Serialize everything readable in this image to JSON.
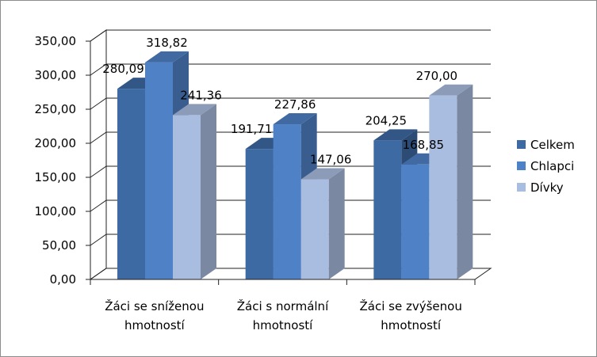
{
  "chart_data": {
    "type": "bar",
    "categories": [
      [
        "Žáci se sníženou",
        "hmotností"
      ],
      [
        "Žáci s normální",
        "hmotností"
      ],
      [
        "Žáci se zvýšenou",
        "hmotností"
      ]
    ],
    "series": [
      {
        "name": "Celkem",
        "values": [
          280.09,
          191.71,
          204.25
        ],
        "labels": [
          "280,09",
          "191,71",
          "204,25"
        ],
        "color": "#3d6aa3"
      },
      {
        "name": "Chlapci",
        "values": [
          318.82,
          227.86,
          168.85
        ],
        "labels": [
          "318,82",
          "227,86",
          "168,85"
        ],
        "color": "#4f81c6"
      },
      {
        "name": "Dívky",
        "values": [
          241.36,
          147.06,
          270.0
        ],
        "labels": [
          "241,36",
          "147,06",
          "270,00"
        ],
        "color": "#a9bde0"
      }
    ],
    "yticks": [
      "0,00",
      "50,00",
      "100,00",
      "150,00",
      "200,00",
      "250,00",
      "300,00",
      "350,00"
    ],
    "ylim": [
      0,
      350
    ],
    "ystep": 50,
    "title": "",
    "xlabel": "",
    "ylabel": "",
    "grid": true,
    "legend_position": "right",
    "style": "3d-clustered-column"
  }
}
